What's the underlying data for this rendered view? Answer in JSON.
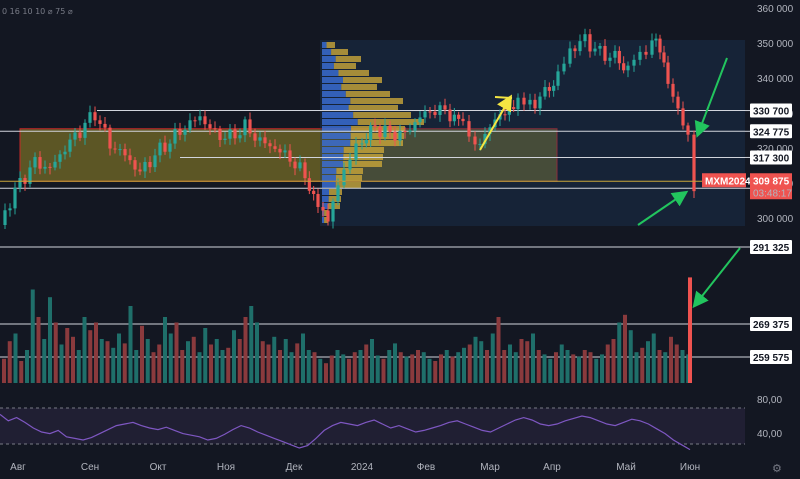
{
  "header": {
    "indicator_text": "0 16 10 10 ⌀ 75 ⌀"
  },
  "chart_data": {
    "type": "candlestick",
    "instrument": "MXM2024",
    "current_price": "309 875",
    "countdown": "03:48:17",
    "price_axis": {
      "ylim": [
        295,
        362
      ],
      "ticks": [
        300,
        310,
        320,
        330,
        340,
        350,
        360
      ]
    },
    "time_axis": {
      "labels": [
        "Авг",
        "Сен",
        "Окт",
        "Ноя",
        "Дек",
        "2024",
        "Фев",
        "Мар",
        "Апр",
        "Май",
        "Июн"
      ]
    },
    "horizontal_levels": [
      {
        "label": "330 700",
        "value": 330.7
      },
      {
        "label": "324 775",
        "value": 324.775
      },
      {
        "label": "317 300",
        "value": 317.3
      },
      {
        "label": "308 500",
        "value": 308.5
      },
      {
        "label": "291 325",
        "value": 291.325
      },
      {
        "label": "269 375",
        "value": 269.375
      },
      {
        "label": "259 575",
        "value": 259.575
      }
    ],
    "zone": {
      "from": 310.5,
      "to": 325.5,
      "color": "#b5a42a"
    },
    "price_path": [
      [
        0,
        298
      ],
      [
        10,
        305
      ],
      [
        20,
        310
      ],
      [
        35,
        316
      ],
      [
        50,
        314
      ],
      [
        65,
        320
      ],
      [
        80,
        325
      ],
      [
        95,
        330
      ],
      [
        110,
        321
      ],
      [
        125,
        318
      ],
      [
        140,
        313
      ],
      [
        155,
        318
      ],
      [
        170,
        322
      ],
      [
        185,
        326
      ],
      [
        200,
        329
      ],
      [
        215,
        324
      ],
      [
        230,
        323
      ],
      [
        245,
        326
      ],
      [
        260,
        322
      ],
      [
        275,
        320
      ],
      [
        290,
        317
      ],
      [
        305,
        312
      ],
      [
        318,
        304
      ],
      [
        328,
        299
      ],
      [
        338,
        310
      ],
      [
        350,
        317
      ],
      [
        362,
        321
      ],
      [
        375,
        326
      ],
      [
        390,
        324
      ],
      [
        405,
        324
      ],
      [
        420,
        329
      ],
      [
        435,
        331
      ],
      [
        450,
        330
      ],
      [
        463,
        327
      ],
      [
        475,
        320
      ],
      [
        490,
        326
      ],
      [
        505,
        331
      ],
      [
        518,
        333
      ],
      [
        530,
        332
      ],
      [
        545,
        336
      ],
      [
        558,
        341
      ],
      [
        570,
        348
      ],
      [
        585,
        351
      ],
      [
        600,
        347
      ],
      [
        615,
        346
      ],
      [
        628,
        343
      ],
      [
        640,
        347
      ],
      [
        652,
        351
      ],
      [
        660,
        349
      ],
      [
        668,
        340
      ],
      [
        678,
        330
      ],
      [
        688,
        324
      ],
      [
        694,
        309.875
      ]
    ],
    "volume": {
      "bars": [
        22,
        38,
        45,
        20,
        30,
        85,
        60,
        40,
        78,
        55,
        35,
        50,
        42,
        30,
        60,
        48,
        55,
        40,
        38,
        32,
        45,
        36,
        70,
        30,
        52,
        40,
        28,
        35,
        60,
        45,
        55,
        30,
        38,
        42,
        28,
        50,
        35,
        40,
        30,
        32,
        48,
        40,
        60,
        70,
        55,
        38,
        35,
        42,
        30,
        40,
        28,
        36,
        45,
        30,
        28,
        22,
        18,
        25,
        30,
        26,
        22,
        28,
        30,
        35,
        40,
        25,
        22,
        30,
        36,
        28,
        24,
        26,
        30,
        28,
        22,
        20,
        26,
        30,
        24,
        28,
        32,
        35,
        42,
        38,
        30,
        45,
        60,
        30,
        35,
        28,
        40,
        38,
        45,
        30,
        26,
        22,
        28,
        35,
        30,
        26,
        24,
        30,
        28,
        22,
        26,
        35,
        40,
        55,
        62,
        48,
        28,
        32,
        38,
        45,
        30,
        28,
        42,
        35,
        30,
        26
      ],
      "spike_value": 96
    },
    "oscillator": {
      "ticks": [
        "80,00",
        "40,00"
      ],
      "values": [
        72,
        64,
        68,
        62,
        55,
        50,
        48,
        52,
        44,
        42,
        40,
        43,
        48,
        53,
        58,
        60,
        62,
        58,
        55,
        53,
        56,
        52,
        48,
        46,
        44,
        40,
        42,
        47,
        53,
        58,
        55,
        50,
        46,
        42,
        38,
        34,
        30,
        33,
        42,
        52,
        58,
        62,
        60,
        58,
        62,
        65,
        60,
        55,
        58,
        54,
        50,
        52,
        55,
        58,
        62,
        64,
        60,
        56,
        52,
        50,
        55,
        60,
        65,
        68,
        65,
        60,
        58,
        60,
        64,
        67,
        70,
        68,
        64,
        60,
        58,
        62,
        66,
        64,
        60,
        54,
        48,
        40,
        34,
        28
      ]
    }
  },
  "colors": {
    "up": "#26a69a",
    "down": "#ef5350",
    "volume_up": "#1f6f6a",
    "volume_down": "#8a3a3d",
    "level_line": "#d1d4dc",
    "arrow_green": "#22c55e",
    "arrow_yellow": "#f5e642",
    "volume_profile_blue": "#3b6fd8",
    "volume_profile_yellow": "#c9a63a",
    "osc_line": "#7e57c2"
  }
}
